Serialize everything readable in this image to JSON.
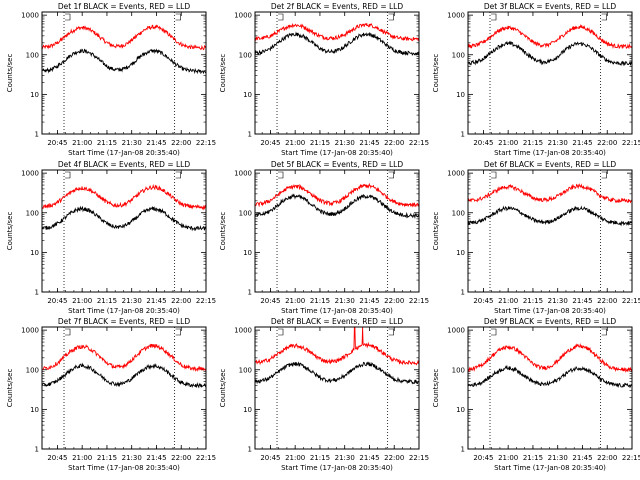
{
  "chart_data": [
    {
      "type": "line",
      "title": "Det 1f BLACK = Events, RED = LLD",
      "xlabel": "Start Time (17-Jan-08 20:35:40)",
      "ylabel": "Counts/sec",
      "ylog": true,
      "ylim": [
        1,
        1200
      ],
      "xlim": [
        "20:35:40",
        "22:15:00"
      ],
      "xtick_labels": [
        "20:45",
        "21:00",
        "21:15",
        "21:30",
        "21:45",
        "22:00",
        "22:15"
      ],
      "ytick_labels": [
        "1",
        "10",
        "100",
        "1000"
      ],
      "markers": [
        "20:49",
        "21:56"
      ],
      "series": [
        {
          "color": "#ff0000",
          "base": 150,
          "peaks": [
            [
              21.0,
              480
            ],
            [
              21.72,
              500
            ]
          ]
        },
        {
          "color": "#000000",
          "base": 38,
          "peaks": [
            [
              21.0,
              125
            ],
            [
              21.72,
              125
            ]
          ]
        }
      ]
    },
    {
      "type": "line",
      "title": "Det 2f BLACK = Events, RED = LLD",
      "xlabel": "Start Time (17-Jan-08 20:35:40)",
      "ylabel": "Counts/sec",
      "ylog": true,
      "ylim": [
        1,
        1200
      ],
      "xlim": [
        "20:35:40",
        "22:15:00"
      ],
      "xtick_labels": [
        "20:45",
        "21:00",
        "21:15",
        "21:30",
        "21:45",
        "22:00",
        "22:15"
      ],
      "ytick_labels": [
        "1",
        "10",
        "100",
        "1000"
      ],
      "markers": [
        "20:49",
        "21:56"
      ],
      "series": [
        {
          "color": "#ff0000",
          "base": 250,
          "peaks": [
            [
              21.0,
              560
            ],
            [
              21.72,
              570
            ]
          ]
        },
        {
          "color": "#000000",
          "base": 110,
          "peaks": [
            [
              21.0,
              330
            ],
            [
              21.72,
              330
            ]
          ]
        }
      ]
    },
    {
      "type": "line",
      "title": "Det 3f BLACK = Events, RED = LLD",
      "xlabel": "Start Time (17-Jan-08 20:35:40)",
      "ylabel": "Counts/sec",
      "ylog": true,
      "ylim": [
        1,
        1200
      ],
      "xlim": [
        "20:35:40",
        "22:15:00"
      ],
      "xtick_labels": [
        "20:45",
        "21:00",
        "21:15",
        "21:30",
        "21:45",
        "22:00",
        "22:15"
      ],
      "ytick_labels": [
        "1",
        "10",
        "100",
        "1000"
      ],
      "markers": [
        "20:49",
        "21:56"
      ],
      "series": [
        {
          "color": "#ff0000",
          "base": 160,
          "peaks": [
            [
              21.0,
              480
            ],
            [
              21.72,
              500
            ]
          ]
        },
        {
          "color": "#000000",
          "base": 60,
          "peaks": [
            [
              21.0,
              190
            ],
            [
              21.72,
              190
            ]
          ]
        }
      ]
    },
    {
      "type": "line",
      "title": "Det 4f BLACK = Events, RED = LLD",
      "xlabel": "Start Time (17-Jan-08 20:35:40)",
      "ylabel": "Counts/sec",
      "ylog": true,
      "ylim": [
        1,
        1200
      ],
      "xlim": [
        "20:35:40",
        "22:15:00"
      ],
      "xtick_labels": [
        "20:45",
        "21:00",
        "21:15",
        "21:30",
        "21:45",
        "22:00",
        "22:15"
      ],
      "ytick_labels": [
        "1",
        "10",
        "100",
        "1000"
      ],
      "markers": [
        "20:49",
        "21:56"
      ],
      "series": [
        {
          "color": "#ff0000",
          "base": 140,
          "peaks": [
            [
              21.0,
              420
            ],
            [
              21.72,
              440
            ]
          ]
        },
        {
          "color": "#000000",
          "base": 40,
          "peaks": [
            [
              21.0,
              125
            ],
            [
              21.72,
              125
            ]
          ]
        }
      ]
    },
    {
      "type": "line",
      "title": "Det 5f BLACK = Events, RED = LLD",
      "xlabel": "Start Time (17-Jan-08 20:35:40)",
      "ylabel": "Counts/sec",
      "ylog": true,
      "ylim": [
        1,
        1200
      ],
      "xlim": [
        "20:35:40",
        "22:15:00"
      ],
      "xtick_labels": [
        "20:45",
        "21:00",
        "21:15",
        "21:30",
        "21:45",
        "22:00",
        "22:15"
      ],
      "ytick_labels": [
        "1",
        "10",
        "100",
        "1000"
      ],
      "markers": [
        "20:49",
        "21:56"
      ],
      "series": [
        {
          "color": "#ff0000",
          "base": 160,
          "peaks": [
            [
              21.0,
              460
            ],
            [
              21.72,
              480
            ]
          ]
        },
        {
          "color": "#000000",
          "base": 85,
          "peaks": [
            [
              21.0,
              260
            ],
            [
              21.72,
              260
            ]
          ]
        }
      ]
    },
    {
      "type": "line",
      "title": "Det 6f BLACK = Events, RED = LLD",
      "xlabel": "Start Time (17-Jan-08 20:35:40)",
      "ylabel": "Counts/sec",
      "ylog": true,
      "ylim": [
        1,
        1200
      ],
      "xlim": [
        "20:35:40",
        "22:15:00"
      ],
      "xtick_labels": [
        "20:45",
        "21:00",
        "21:15",
        "21:30",
        "21:45",
        "22:00",
        "22:15"
      ],
      "ytick_labels": [
        "1",
        "10",
        "100",
        "1000"
      ],
      "markers": [
        "20:49",
        "21:56"
      ],
      "series": [
        {
          "color": "#ff0000",
          "base": 200,
          "peaks": [
            [
              21.0,
              450
            ],
            [
              21.72,
              470
            ]
          ]
        },
        {
          "color": "#000000",
          "base": 55,
          "peaks": [
            [
              21.0,
              130
            ],
            [
              21.72,
              130
            ]
          ]
        }
      ]
    },
    {
      "type": "line",
      "title": "Det 7f BLACK = Events, RED = LLD",
      "xlabel": "Start Time (17-Jan-08 20:35:40)",
      "ylabel": "Counts/sec",
      "ylog": true,
      "ylim": [
        1,
        1200
      ],
      "xlim": [
        "20:35:40",
        "22:15:00"
      ],
      "xtick_labels": [
        "20:45",
        "21:00",
        "21:15",
        "21:30",
        "21:45",
        "22:00",
        "22:15"
      ],
      "ytick_labels": [
        "1",
        "10",
        "100",
        "1000"
      ],
      "markers": [
        "20:49",
        "21:56"
      ],
      "series": [
        {
          "color": "#ff0000",
          "base": 105,
          "peaks": [
            [
              21.0,
              380
            ],
            [
              21.72,
              400
            ]
          ]
        },
        {
          "color": "#000000",
          "base": 40,
          "peaks": [
            [
              21.0,
              125
            ],
            [
              21.72,
              125
            ]
          ]
        }
      ]
    },
    {
      "type": "line",
      "title": "Det 8f BLACK = Events, RED = LLD",
      "xlabel": "Start Time (17-Jan-08 20:35:40)",
      "ylabel": "Counts/sec",
      "ylog": true,
      "ylim": [
        1,
        1200
      ],
      "xlim": [
        "20:35:40",
        "22:15:00"
      ],
      "xtick_labels": [
        "20:45",
        "21:00",
        "21:15",
        "21:30",
        "21:45",
        "22:00",
        "22:15"
      ],
      "ytick_labels": [
        "1",
        "10",
        "100",
        "1000"
      ],
      "markers": [
        "20:49",
        "21:56"
      ],
      "series": [
        {
          "color": "#ff0000",
          "base": 150,
          "peaks": [
            [
              21.0,
              400
            ],
            [
              21.72,
              420
            ]
          ],
          "spikes": [
            [
              21.6,
              2000
            ],
            [
              21.68,
              2000
            ]
          ]
        },
        {
          "color": "#000000",
          "base": 50,
          "peaks": [
            [
              21.0,
              140
            ],
            [
              21.72,
              140
            ]
          ]
        }
      ]
    },
    {
      "type": "line",
      "title": "Det 9f BLACK = Events, RED = LLD",
      "xlabel": "Start Time (17-Jan-08 20:35:40)",
      "ylabel": "Counts/sec",
      "ylog": true,
      "ylim": [
        1,
        1200
      ],
      "xlim": [
        "20:35:40",
        "22:15:00"
      ],
      "xtick_labels": [
        "20:45",
        "21:00",
        "21:15",
        "21:30",
        "21:45",
        "22:00",
        "22:15"
      ],
      "ytick_labels": [
        "1",
        "10",
        "100",
        "1000"
      ],
      "markers": [
        "20:49",
        "21:56"
      ],
      "series": [
        {
          "color": "#ff0000",
          "base": 100,
          "peaks": [
            [
              21.0,
              370
            ],
            [
              21.72,
              390
            ]
          ]
        },
        {
          "color": "#000000",
          "base": 40,
          "peaks": [
            [
              21.0,
              110
            ],
            [
              21.72,
              110
            ]
          ]
        }
      ]
    }
  ]
}
